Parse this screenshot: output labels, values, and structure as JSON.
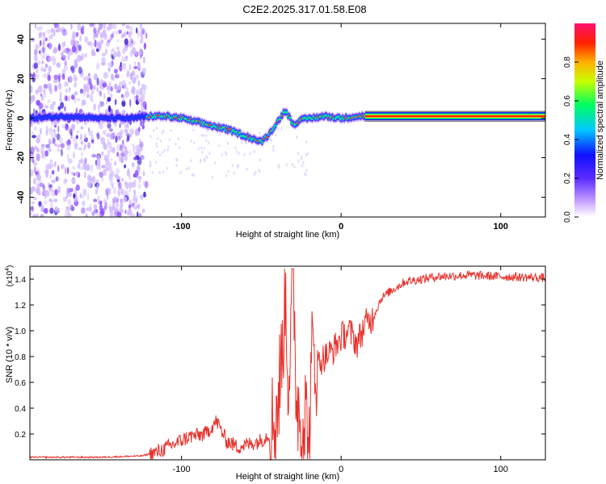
{
  "title": "C2E2.2025.317.01.58.E08",
  "chart_data": [
    {
      "type": "heatmap",
      "title": "C2E2.2025.317.01.58.E08",
      "xlabel": "Height of straight line (km)",
      "ylabel": "Frequency (Hz)",
      "xlim": [
        -195,
        128
      ],
      "ylim": [
        -50,
        48
      ],
      "xticks": [
        -100,
        0,
        100
      ],
      "xtick_labels": [
        "-100",
        "0",
        "100"
      ],
      "yticks": [
        -40,
        -20,
        0,
        20,
        40
      ],
      "ytick_labels": [
        "-40",
        "-20",
        "0",
        "20",
        "40"
      ],
      "ridge": {
        "x": [
          -195,
          -170,
          -150,
          -130,
          -120,
          -110,
          -100,
          -90,
          -80,
          -70,
          -60,
          -50,
          -45,
          -40,
          -35,
          -30,
          -25,
          -20,
          -10,
          0,
          10,
          20,
          128
        ],
        "y": [
          0,
          1,
          0,
          0,
          1,
          1,
          0,
          -2,
          -4,
          -6,
          -9,
          -12,
          -8,
          -2,
          4,
          -3,
          -1,
          0,
          1,
          0,
          1,
          1,
          1
        ]
      },
      "noise_region_x": [
        -195,
        -122
      ],
      "steady_signal_x": [
        15,
        128
      ],
      "colorbar": {
        "label": "Normalized spectral amplitude",
        "range": [
          0,
          1
        ],
        "ticks": [
          0.0,
          0.2,
          0.4,
          0.6,
          0.8
        ],
        "tick_labels": [
          "0.0",
          "0.2",
          "0.4",
          "0.6",
          "0.8"
        ],
        "colors": [
          "#ffffff",
          "#b070ff",
          "#3010ff",
          "#00c8ff",
          "#00ff60",
          "#ffff00",
          "#ff3000",
          "#ff1060"
        ]
      }
    },
    {
      "type": "line",
      "xlabel": "Height of straight line (km)",
      "ylabel": "SNR (10 * v/v)",
      "y_multiplier": "(x10",
      "y_multiplier_exp": "4",
      "y_multiplier_close": ")",
      "xlim": [
        -195,
        128
      ],
      "ylim": [
        0,
        1.5
      ],
      "xticks": [
        -100,
        0,
        100
      ],
      "xtick_labels": [
        "-100",
        "0",
        "100"
      ],
      "yticks": [
        0.2,
        0.4,
        0.6,
        0.8,
        1.0,
        1.2,
        1.4
      ],
      "ytick_labels": [
        "0.2",
        "0.4",
        "0.6",
        "0.8",
        "1.0",
        "1.2",
        "1.4"
      ],
      "color": "#e8302a",
      "series": [
        {
          "name": "SNR",
          "x": [
            -195,
            -150,
            -125,
            -115,
            -105,
            -95,
            -85,
            -78,
            -72,
            -65,
            -58,
            -50,
            -45,
            -40,
            -37,
            -35,
            -33,
            -30,
            -28,
            -25,
            -22,
            -20,
            -18,
            -15,
            -10,
            -5,
            0,
            5,
            10,
            15,
            20,
            25,
            30,
            40,
            50,
            60,
            80,
            100,
            128
          ],
          "y": [
            0.02,
            0.02,
            0.03,
            0.06,
            0.12,
            0.18,
            0.2,
            0.3,
            0.15,
            0.1,
            0.12,
            0.15,
            0.2,
            0.4,
            0.8,
            1.35,
            0.6,
            1.4,
            0.5,
            0.3,
            0.35,
            0.1,
            0.85,
            0.75,
            0.8,
            0.85,
            0.95,
            1.0,
            0.9,
            1.05,
            1.1,
            1.25,
            1.3,
            1.38,
            1.4,
            1.42,
            1.43,
            1.42,
            1.41
          ]
        }
      ]
    }
  ]
}
